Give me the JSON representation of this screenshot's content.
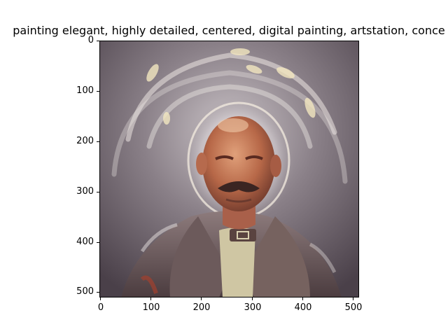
{
  "title": "painting elegant, highly detailed, centered, digital painting, artstation, conce",
  "image": {
    "subject": "painted portrait of a bald bearded man in a coat with a glowing halo-like helmet",
    "palette": {
      "background": "#5f5760",
      "halo": "#e8dfd2",
      "skin": "#b86a4c",
      "coat": "#6b5a58",
      "shirt": "#d6cfae"
    }
  },
  "axes": {
    "y_ticks": [
      "0",
      "100",
      "200",
      "300",
      "400",
      "500"
    ],
    "x_ticks": [
      "0",
      "100",
      "200",
      "300",
      "400",
      "500"
    ],
    "xlim": [
      0,
      512
    ],
    "ylim": [
      512,
      0
    ]
  }
}
